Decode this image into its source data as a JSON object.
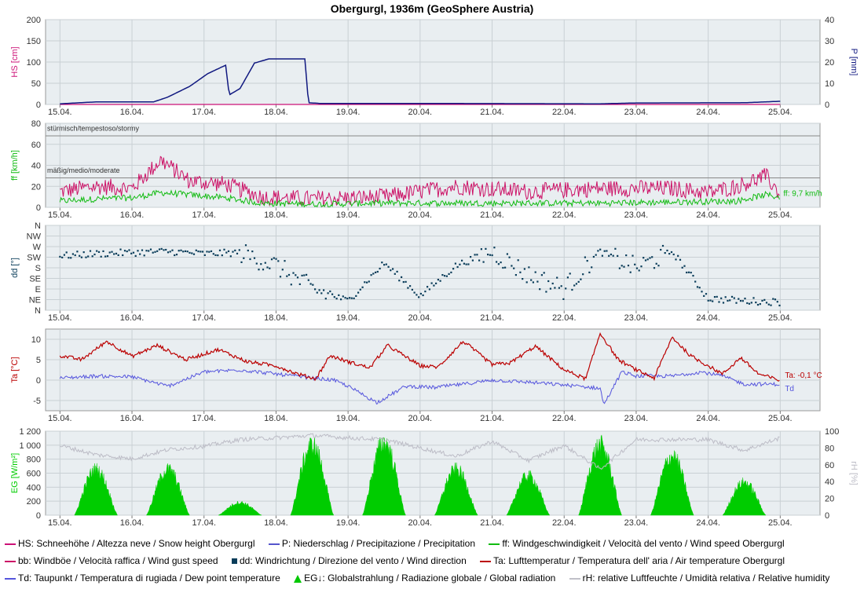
{
  "title": "Obergurgl, 1936m (GeoSphere Austria)",
  "colors": {
    "snow": "#cc1177",
    "precip": "#101880",
    "wind": "#11bb11",
    "gust": "#cc1166",
    "dir": "#0a3d5a",
    "temp": "#bb0000",
    "dew": "#5555dd",
    "rad": "#00cc00",
    "rh": "#bcbcc6",
    "plotbg": "#e9eef1",
    "grid": "#c9d0d4"
  },
  "x_ticks": [
    "15.04.",
    "16.04.",
    "17.04.",
    "18.04.",
    "19.04.",
    "20.04.",
    "21.04.",
    "22.04.",
    "23.04.",
    "24.04.",
    "25.04."
  ],
  "panels": {
    "snow": {
      "y_label": "HS [cm]",
      "y_ticks": [
        "0",
        "50",
        "100",
        "150",
        "200"
      ],
      "y2_label": "P [mm]",
      "y2_ticks": [
        "0",
        "10",
        "20",
        "30",
        "40"
      ]
    },
    "wind": {
      "y_label": "ff [km/h]",
      "y_ticks": [
        "0",
        "20",
        "40",
        "60",
        "80"
      ],
      "band_stormy": "stürmisch/tempestoso/stormy",
      "band_moderate": "mäßig/medio/moderate",
      "current_label": "ff: 9,7 km/h"
    },
    "dir": {
      "y_label": "dd [°]",
      "y_ticks": [
        "N",
        "NE",
        "E",
        "SE",
        "S",
        "SW",
        "W",
        "NW",
        "N"
      ]
    },
    "temp": {
      "y_label": "Ta [°C]",
      "y_ticks": [
        "-5",
        "0",
        "5",
        "10"
      ],
      "current_label": "Ta: -0,1 °C",
      "dew_label": "Td"
    },
    "rad": {
      "y_label": "EG [W/m²]",
      "y_ticks": [
        "0",
        "200",
        "400",
        "600",
        "800",
        "1 000",
        "1 200"
      ],
      "y2_label": "rH [%]",
      "y2_ticks": [
        "0",
        "20",
        "40",
        "60",
        "80",
        "100"
      ]
    }
  },
  "legend": {
    "snow": "HS: Schneehöhe / Altezza neve / Snow height  Obergurgl",
    "precip": "P: Niederschlag / Precipitazione / Precipitation",
    "wind": "ff: Windgeschwindigkeit / Velocità del vento / Wind speed  Obergurgl",
    "gust": "bb: Windböe / Velocità raffica / Wind gust speed",
    "dir": "dd: Windrichtung / Direzione del vento / Wind direction",
    "temp": "Ta: Lufttemperatur / Temperatura dell' aria / Air temperature  Obergurgl",
    "dew": "Td: Taupunkt / Temperatura di rugiada / Dew point temperature",
    "rad": "EG↓: Globalstrahlung / Radiazione globale / Global radiation",
    "rh": "rH: relative Luftfeuchte / Umidità relativa / Relative humidity"
  },
  "chart_data": [
    {
      "type": "line",
      "x_unit": "days since 15.04.",
      "series": [
        {
          "name": "HS",
          "x": [
            0,
            10
          ],
          "values": [
            0,
            0
          ]
        },
        {
          "name": "P",
          "x": [
            0,
            0.5,
            1.3,
            1.5,
            1.8,
            2.05,
            2.3,
            2.35,
            2.5,
            2.7,
            2.9,
            3.4,
            3.45,
            3.6,
            4.5,
            7.5,
            8.0,
            9.5,
            10.0
          ],
          "values": [
            0.3,
            1.2,
            1.2,
            3.5,
            8.5,
            14.5,
            18.5,
            4.5,
            7.5,
            19.5,
            21.5,
            21.5,
            0.8,
            0.5,
            0.5,
            0.3,
            0.7,
            0.8,
            1.5
          ]
        }
      ]
    },
    {
      "type": "line",
      "x_unit": "days since 15.04.",
      "series": [
        {
          "name": "ff",
          "x": [
            0,
            0.5,
            1.0,
            1.4,
            1.8,
            2.3,
            2.8,
            3.5,
            4.5,
            5.5,
            6.5,
            7.5,
            8.5,
            9.4,
            9.8,
            10.0
          ],
          "values": [
            6,
            8,
            9,
            14,
            12,
            9,
            4,
            3,
            4,
            4,
            4,
            4,
            5,
            6,
            12,
            9.7
          ]
        },
        {
          "name": "bb",
          "x": [
            0,
            0.5,
            1.0,
            1.4,
            1.8,
            2.3,
            2.8,
            3.5,
            4.5,
            5.5,
            6.5,
            7.5,
            8.5,
            9.0,
            9.4,
            9.8,
            10.0
          ],
          "values": [
            15,
            20,
            18,
            45,
            25,
            22,
            10,
            8,
            10,
            20,
            15,
            18,
            18,
            14,
            20,
            30,
            12
          ]
        }
      ]
    },
    {
      "type": "scatter",
      "x_unit": "days since 15.04.",
      "y_unit": "degrees",
      "series": [
        {
          "name": "dd",
          "x": [
            0,
            0.5,
            1.0,
            1.5,
            2.0,
            2.5,
            3.0,
            3.5,
            4.0,
            4.5,
            5.0,
            5.5,
            6.0,
            6.5,
            7.0,
            7.5,
            8.0,
            8.5,
            9.0,
            9.5,
            10.0
          ],
          "values": [
            230,
            240,
            245,
            250,
            240,
            245,
            190,
            90,
            40,
            200,
            60,
            190,
            250,
            150,
            90,
            250,
            180,
            250,
            50,
            40,
            35
          ]
        }
      ]
    },
    {
      "type": "line",
      "x_unit": "days since 15.04.",
      "series": [
        {
          "name": "Ta",
          "x": [
            0,
            0.3,
            0.65,
            1.0,
            1.35,
            1.75,
            2.2,
            2.6,
            3.0,
            3.3,
            3.55,
            3.75,
            4.0,
            4.3,
            4.55,
            5.0,
            5.25,
            5.6,
            6.0,
            6.25,
            6.6,
            7.0,
            7.3,
            7.5,
            7.75,
            8.0,
            8.25,
            8.5,
            8.75,
            9.0,
            9.2,
            9.45,
            9.7,
            10.0
          ],
          "values": [
            6,
            5,
            9.5,
            5.8,
            8.5,
            5,
            7.5,
            4.5,
            3.5,
            1.5,
            0.3,
            6,
            4.5,
            3,
            8.5,
            3.5,
            3.2,
            9.5,
            3.8,
            4.2,
            8.3,
            2.5,
            0.3,
            11.5,
            5.0,
            2.5,
            0.5,
            10.5,
            6,
            3.5,
            1.5,
            5.5,
            1.5,
            -0.1
          ]
        },
        {
          "name": "Td",
          "x": [
            0,
            0.5,
            1.0,
            1.5,
            2.0,
            2.5,
            3.0,
            3.5,
            3.8,
            4.0,
            4.4,
            4.8,
            5.2,
            5.6,
            6.0,
            6.5,
            7.0,
            7.5,
            7.55,
            7.8,
            8.0,
            8.5,
            8.9,
            9.2,
            9.5,
            10.0
          ],
          "values": [
            0.5,
            1,
            0.8,
            -1.5,
            2,
            2.5,
            1.5,
            0.5,
            0,
            -1.5,
            -5.5,
            -1.5,
            -1.8,
            -1.0,
            0,
            -0.5,
            -1.2,
            -2.0,
            -6.0,
            2.0,
            1.0,
            1.0,
            2.0,
            1.0,
            -1.0,
            -1.0
          ]
        }
      ]
    },
    {
      "type": "area",
      "x_unit": "days since 15.04.",
      "series": [
        {
          "name": "EG",
          "peak_x": [
            0.5,
            1.5,
            2.5,
            3.5,
            4.5,
            5.5,
            6.5,
            7.5,
            8.5,
            9.5
          ],
          "peak_values": [
            720,
            720,
            200,
            1100,
            1150,
            720,
            620,
            1100,
            930,
            520
          ]
        },
        {
          "name": "rH",
          "x": [
            0,
            0.5,
            1.0,
            1.5,
            2.0,
            2.5,
            3.0,
            3.5,
            4.0,
            4.5,
            5.0,
            5.5,
            6.0,
            6.5,
            7.0,
            7.5,
            8.0,
            8.5,
            9.0,
            9.5,
            10.0
          ],
          "values": [
            83,
            72,
            67,
            78,
            82,
            90,
            92,
            95,
            92,
            90,
            80,
            70,
            88,
            65,
            83,
            55,
            90,
            90,
            90,
            77,
            92
          ]
        }
      ]
    }
  ]
}
